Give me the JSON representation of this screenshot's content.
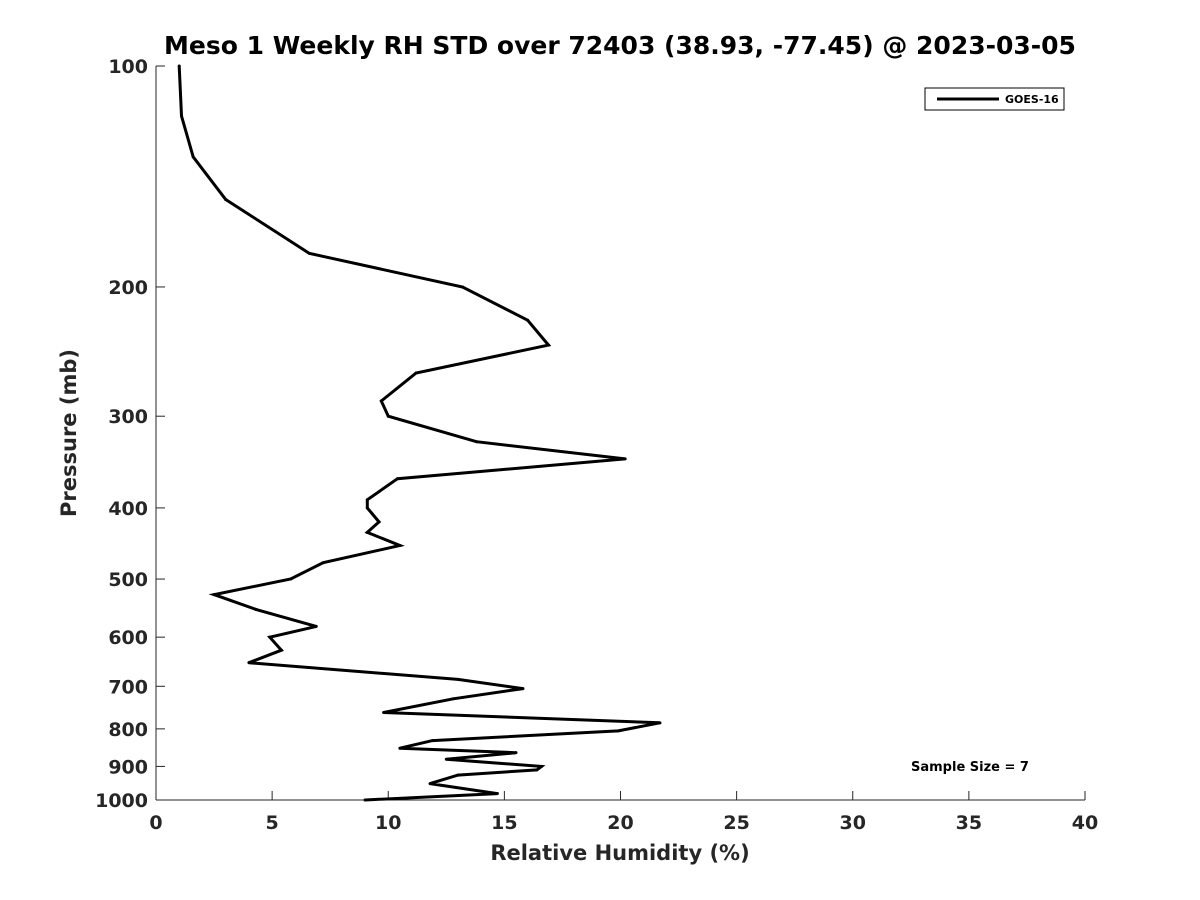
{
  "chart_data": {
    "type": "line",
    "title": "Meso 1 Weekly RH STD over 72403 (38.93, -77.45) @ 2023-03-05",
    "xlabel": "Relative Humidity (%)",
    "ylabel": "Pressure (mb)",
    "xlim": [
      0,
      40
    ],
    "ylim": [
      1000,
      100
    ],
    "y_scale": "log",
    "y_inverted": true,
    "grid": false,
    "legend_position": "top-right",
    "x_ticks": [
      "0",
      "5",
      "10",
      "15",
      "20",
      "25",
      "30",
      "35",
      "40"
    ],
    "x_tick_values": [
      0,
      5,
      10,
      15,
      20,
      25,
      30,
      35,
      40
    ],
    "y_ticks": [
      "100",
      "200",
      "300",
      "400",
      "500",
      "600",
      "700",
      "800",
      "900",
      "1000"
    ],
    "y_tick_values": [
      100,
      200,
      300,
      400,
      500,
      600,
      700,
      800,
      900,
      1000
    ],
    "series": [
      {
        "name": "GOES-16",
        "color": "#000000",
        "x": [
          1.0,
          1.1,
          1.6,
          3.0,
          6.6,
          13.2,
          16.0,
          16.9,
          11.2,
          9.7,
          10.0,
          13.8,
          20.2,
          10.4,
          9.1,
          9.1,
          9.6,
          9.1,
          10.5,
          7.2,
          5.8,
          2.5,
          4.3,
          6.9,
          4.9,
          5.4,
          4.0,
          13.0,
          15.8,
          12.8,
          9.8,
          21.7,
          19.9,
          11.9,
          10.5,
          15.5,
          12.5,
          16.6,
          16.4,
          13.0,
          11.8,
          14.7,
          9.0
        ],
        "y": [
          100,
          117,
          133,
          152,
          180,
          200,
          222,
          240,
          262,
          286,
          300,
          325,
          343,
          365,
          390,
          400,
          418,
          432,
          450,
          475,
          500,
          525,
          550,
          580,
          600,
          625,
          650,
          685,
          705,
          728,
          760,
          785,
          805,
          830,
          850,
          862,
          880,
          900,
          910,
          925,
          950,
          980,
          1000
        ]
      }
    ],
    "annotations": [
      "Sample Size = 7"
    ]
  }
}
